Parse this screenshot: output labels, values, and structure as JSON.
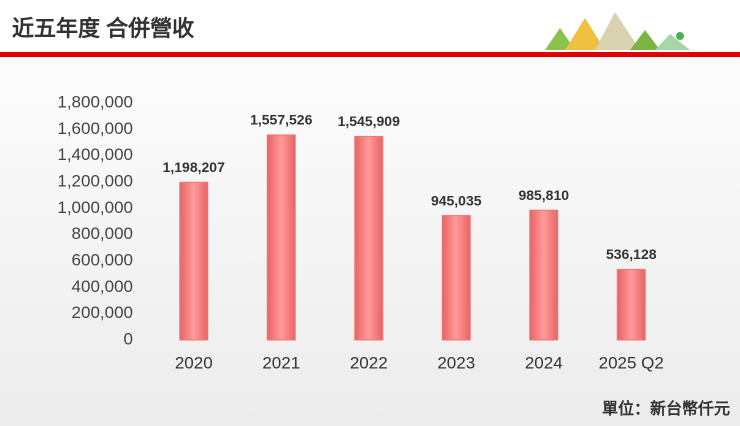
{
  "chart_data": {
    "type": "bar",
    "title": "近五年度 合併營收",
    "categories": [
      "2020",
      "2021",
      "2022",
      "2023",
      "2024",
      "2025 Q2"
    ],
    "values": [
      1198207,
      1557526,
      1545909,
      945035,
      985810,
      536128
    ],
    "value_labels": [
      "1,198,207",
      "1,557,526",
      "1,545,909",
      "945,035",
      "985,810",
      "536,128"
    ],
    "color": "#f07878",
    "ylim": [
      0,
      1800000
    ],
    "yticks": [
      0,
      {
        "value": 200000,
        "label": "200,000"
      },
      {
        "value": 400000,
        "label": "400,000"
      },
      {
        "value": 600000,
        "label": "600,000"
      },
      {
        "value": 800000,
        "label": "800,000"
      },
      {
        "value": 1000000,
        "label": "1,000,000"
      },
      {
        "value": 1200000,
        "label": "1,200,000"
      },
      {
        "value": 1400000,
        "label": "1,400,000"
      },
      {
        "value": 1600000,
        "label": "1,600,000"
      },
      {
        "value": 1800000,
        "label": "1,800,000"
      }
    ],
    "annotation": "單位：新台幣仟元"
  }
}
